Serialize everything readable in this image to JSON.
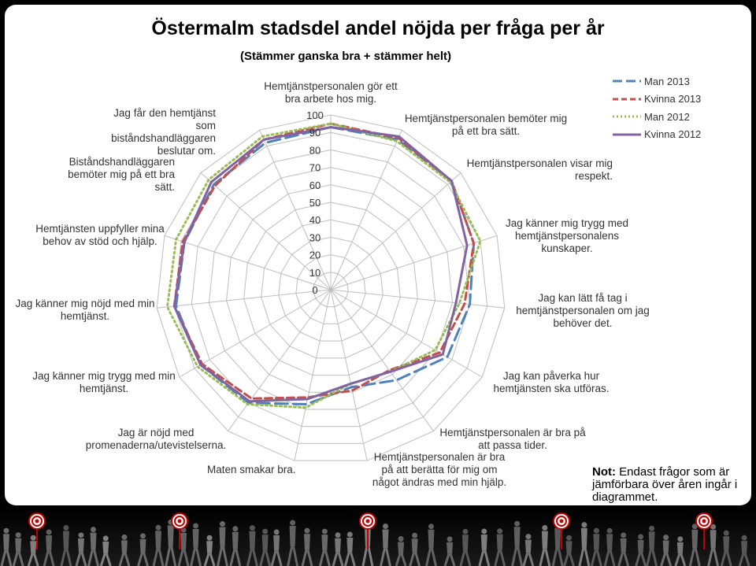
{
  "title": "Östermalm stadsdel andel nöjda per fråga per år",
  "subtitle": "(Stämmer ganska bra + stämmer helt)",
  "note": {
    "label": "Not:",
    "text": "Endast frågor som är jämförbara över åren ingår i diagrammet."
  },
  "chart_data": {
    "type": "radar",
    "title": "Östermalm stadsdel andel nöjda per fråga per år",
    "subtitle": "(Stämmer ganska bra + stämmer helt)",
    "radial_axis": {
      "min": 0,
      "max": 100,
      "ticks": [
        0,
        10,
        20,
        30,
        40,
        50,
        60,
        70,
        80,
        90,
        100
      ]
    },
    "grid": true,
    "legend_position": "top-right",
    "categories": [
      "Hemtjänstpersonalen gör ett bra arbete hos mig.",
      "Hemtjänstpersonalen bemöter mig på ett bra sätt.",
      "Hemtjänstpersonalen visar mig respekt.",
      "Jag känner mig trygg med hemtjänstpersonalens kunskaper.",
      "Jag kan lätt få tag i hemtjänstpersonalen om jag behöver det.",
      "Jag kan påverka hur hemtjänsten ska utföras.",
      "Hemtjänstpersonalen är bra på att passa tider.",
      "Hemtjänstpersonalen är bra på att berätta för mig om något ändras med min hjälp.",
      "Maten smakar bra.",
      "Jag är nöjd med promenaderna/utevistelserna.",
      "Jag känner mig trygg med min hemtjänst.",
      "Jag känner mig nöjd med min hemtjänst.",
      "Hemtjänsten uppfyller mina behov av stöd och hjälp.",
      "Biståndshandläggaren bemöter mig på ett bra sätt.",
      "Jag får den hemtjänst som biståndshandläggaren beslutar om."
    ],
    "series": [
      {
        "name": "Man 2013",
        "color": "#4f81bd",
        "dash": "dashed",
        "values": [
          93,
          94,
          93,
          86,
          80,
          77,
          64,
          57,
          67,
          80,
          86,
          89,
          88,
          90,
          92
        ]
      },
      {
        "name": "Kvinna 2013",
        "color": "#c0504d",
        "dash": "dashed",
        "values": [
          95,
          95,
          93,
          86,
          77,
          72,
          57,
          59,
          63,
          77,
          85,
          90,
          89,
          89,
          94
        ]
      },
      {
        "name": "Man 2012",
        "color": "#9bbb59",
        "dash": "dotted",
        "values": [
          95,
          93,
          92,
          90,
          74,
          69,
          58,
          55,
          69,
          81,
          88,
          94,
          93,
          94,
          96
        ]
      },
      {
        "name": "Kvinna 2012",
        "color": "#8064a2",
        "dash": "solid",
        "values": [
          93,
          96,
          93,
          82,
          72,
          74,
          58,
          55,
          64,
          79,
          86,
          90,
          88,
          92,
          94
        ]
      }
    ]
  }
}
